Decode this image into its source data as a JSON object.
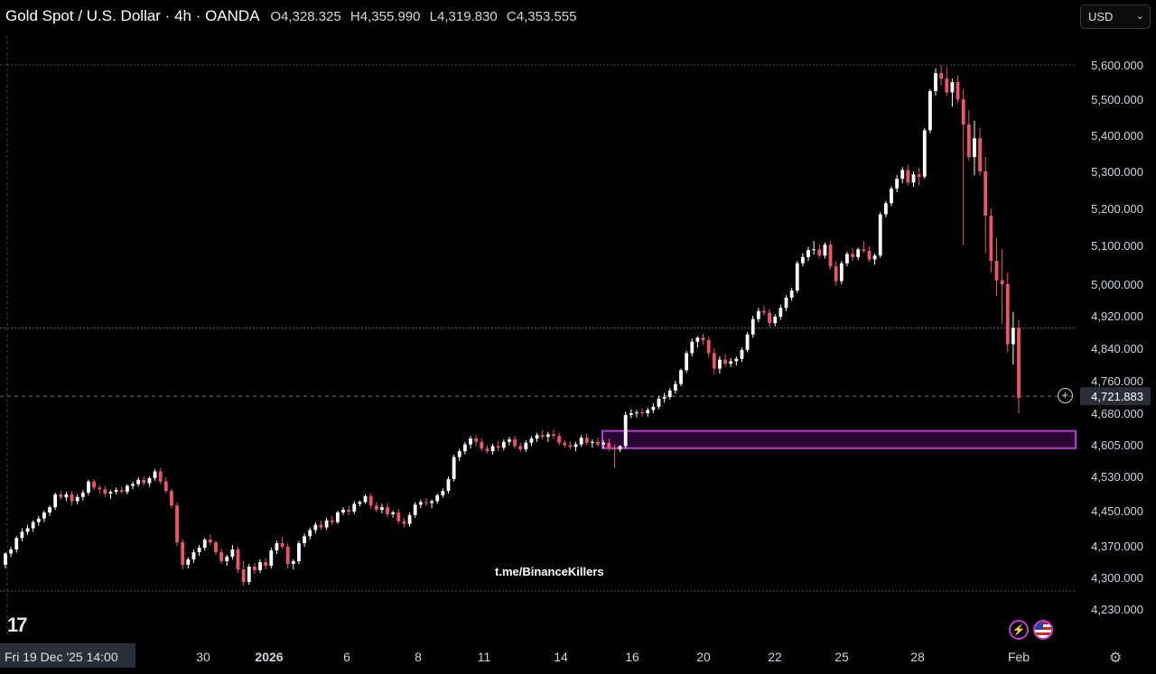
{
  "header": {
    "symbol": "Gold Spot / U.S. Dollar · 4h · OANDA",
    "open": "O4,328.325",
    "high": "H4,355.990",
    "low": "L4,319.830",
    "close": "C4,353.555"
  },
  "currency_selector": {
    "value": "USD"
  },
  "watermark": "t.me/BinanceKillers",
  "crosshair_date_label": "Fri 19 Dec '25   14:00",
  "price_label": "4,721.883",
  "icons": {
    "logo": "tradingview-logo-icon",
    "alerts": "lightning-icon",
    "flag": "us-flag-icon",
    "settings": "gear-icon",
    "add": "plus-circle-icon"
  },
  "colors": {
    "up": "#ffffff",
    "down": "#f05468",
    "zone": "#b13fd1",
    "zone_fill": "#2a0634",
    "price_tag": "#2a2e39",
    "date_tag": "#2a2e39"
  },
  "chart_data": {
    "type": "candlestick",
    "title": "Gold Spot / U.S. Dollar · 4h · OANDA",
    "ylim": [
      4190,
      5660
    ],
    "y_ticks": [
      "5,600.000",
      "5,500.000",
      "5,400.000",
      "5,300.000",
      "5,200.000",
      "5,100.000",
      "5,000.000",
      "4,920.000",
      "4,840.000",
      "4,760.000",
      "4,680.000",
      "4,605.000",
      "4,530.000",
      "4,450.000",
      "4,370.000",
      "4,300.000",
      "4,230.000"
    ],
    "y_tick_values": [
      5600,
      5500,
      5400,
      5300,
      5200,
      5100,
      5000,
      4920,
      4840,
      4760,
      4680,
      4605,
      4530,
      4450,
      4370,
      4300,
      4230
    ],
    "x_ticks": [
      "30",
      "2026",
      "6",
      "8",
      "11",
      "14",
      "16",
      "20",
      "22",
      "25",
      "28",
      "Feb"
    ],
    "last_price": 4721.883,
    "horizontal_lines": [
      5600,
      4890,
      4270
    ],
    "demand_zone": {
      "low": 4597,
      "high": 4638
    },
    "candles_ohlc": [
      [
        4328,
        4356,
        4320,
        4353
      ],
      [
        4353,
        4368,
        4345,
        4362
      ],
      [
        4362,
        4392,
        4355,
        4388
      ],
      [
        4388,
        4410,
        4380,
        4402
      ],
      [
        4402,
        4418,
        4395,
        4410
      ],
      [
        4410,
        4428,
        4402,
        4424
      ],
      [
        4424,
        4438,
        4416,
        4432
      ],
      [
        4432,
        4450,
        4424,
        4446
      ],
      [
        4446,
        4462,
        4438,
        4458
      ],
      [
        4458,
        4492,
        4452,
        4488
      ],
      [
        4488,
        4496,
        4476,
        4481
      ],
      [
        4481,
        4494,
        4472,
        4488
      ],
      [
        4488,
        4496,
        4462,
        4472
      ],
      [
        4472,
        4488,
        4465,
        4482
      ],
      [
        4482,
        4498,
        4474,
        4492
      ],
      [
        4492,
        4522,
        4486,
        4518
      ],
      [
        4518,
        4524,
        4498,
        4504
      ],
      [
        4504,
        4510,
        4490,
        4500
      ],
      [
        4500,
        4508,
        4482,
        4490
      ],
      [
        4490,
        4498,
        4478,
        4494
      ],
      [
        4494,
        4504,
        4488,
        4498
      ],
      [
        4498,
        4506,
        4490,
        4494
      ],
      [
        4494,
        4512,
        4488,
        4508
      ],
      [
        4508,
        4518,
        4500,
        4512
      ],
      [
        4512,
        4528,
        4506,
        4522
      ],
      [
        4522,
        4530,
        4508,
        4514
      ],
      [
        4514,
        4530,
        4506,
        4526
      ],
      [
        4526,
        4548,
        4520,
        4542
      ],
      [
        4542,
        4550,
        4512,
        4518
      ],
      [
        4518,
        4528,
        4490,
        4496
      ],
      [
        4496,
        4502,
        4455,
        4462
      ],
      [
        4462,
        4470,
        4370,
        4378
      ],
      [
        4378,
        4385,
        4318,
        4328
      ],
      [
        4328,
        4345,
        4320,
        4340
      ],
      [
        4340,
        4362,
        4332,
        4356
      ],
      [
        4356,
        4372,
        4348,
        4366
      ],
      [
        4366,
        4388,
        4360,
        4384
      ],
      [
        4384,
        4396,
        4372,
        4378
      ],
      [
        4378,
        4382,
        4350,
        4356
      ],
      [
        4356,
        4364,
        4330,
        4336
      ],
      [
        4336,
        4350,
        4326,
        4346
      ],
      [
        4346,
        4372,
        4340,
        4362
      ],
      [
        4362,
        4368,
        4310,
        4318
      ],
      [
        4318,
        4336,
        4282,
        4290
      ],
      [
        4290,
        4330,
        4284,
        4324
      ],
      [
        4324,
        4332,
        4308,
        4316
      ],
      [
        4316,
        4340,
        4310,
        4334
      ],
      [
        4334,
        4342,
        4318,
        4326
      ],
      [
        4326,
        4366,
        4320,
        4360
      ],
      [
        4360,
        4382,
        4352,
        4376
      ],
      [
        4376,
        4390,
        4364,
        4368
      ],
      [
        4368,
        4376,
        4320,
        4330
      ],
      [
        4330,
        4340,
        4318,
        4336
      ],
      [
        4336,
        4382,
        4330,
        4376
      ],
      [
        4376,
        4398,
        4368,
        4392
      ],
      [
        4392,
        4412,
        4384,
        4406
      ],
      [
        4406,
        4424,
        4398,
        4418
      ],
      [
        4418,
        4428,
        4406,
        4412
      ],
      [
        4412,
        4434,
        4406,
        4428
      ],
      [
        4428,
        4438,
        4418,
        4424
      ],
      [
        4424,
        4450,
        4420,
        4446
      ],
      [
        4446,
        4458,
        4440,
        4452
      ],
      [
        4452,
        4462,
        4440,
        4448
      ],
      [
        4448,
        4472,
        4442,
        4466
      ],
      [
        4466,
        4474,
        4460,
        4470
      ],
      [
        4470,
        4488,
        4466,
        4484
      ],
      [
        4484,
        4490,
        4454,
        4462
      ],
      [
        4462,
        4470,
        4446,
        4452
      ],
      [
        4452,
        4466,
        4444,
        4458
      ],
      [
        4458,
        4468,
        4436,
        4442
      ],
      [
        4442,
        4450,
        4434,
        4446
      ],
      [
        4446,
        4454,
        4420,
        4426
      ],
      [
        4426,
        4434,
        4412,
        4420
      ],
      [
        4420,
        4446,
        4414,
        4440
      ],
      [
        4440,
        4470,
        4434,
        4464
      ],
      [
        4464,
        4476,
        4456,
        4470
      ],
      [
        4470,
        4480,
        4460,
        4468
      ],
      [
        4468,
        4476,
        4456,
        4472
      ],
      [
        4472,
        4490,
        4466,
        4486
      ],
      [
        4486,
        4502,
        4480,
        4496
      ],
      [
        4496,
        4530,
        4490,
        4524
      ],
      [
        4524,
        4582,
        4518,
        4576
      ],
      [
        4576,
        4596,
        4566,
        4590
      ],
      [
        4590,
        4612,
        4582,
        4606
      ],
      [
        4606,
        4626,
        4596,
        4620
      ],
      [
        4620,
        4628,
        4602,
        4612
      ],
      [
        4612,
        4620,
        4590,
        4596
      ],
      [
        4596,
        4604,
        4584,
        4590
      ],
      [
        4590,
        4608,
        4582,
        4602
      ],
      [
        4602,
        4614,
        4590,
        4598
      ],
      [
        4598,
        4618,
        4592,
        4612
      ],
      [
        4612,
        4624,
        4604,
        4618
      ],
      [
        4618,
        4626,
        4596,
        4602
      ],
      [
        4602,
        4610,
        4588,
        4594
      ],
      [
        4594,
        4616,
        4588,
        4610
      ],
      [
        4610,
        4626,
        4602,
        4620
      ],
      [
        4620,
        4634,
        4612,
        4628
      ],
      [
        4628,
        4640,
        4618,
        4624
      ],
      [
        4624,
        4636,
        4612,
        4630
      ],
      [
        4630,
        4642,
        4620,
        4626
      ],
      [
        4626,
        4634,
        4604,
        4610
      ],
      [
        4610,
        4616,
        4598,
        4604
      ],
      [
        4604,
        4614,
        4594,
        4600
      ],
      [
        4600,
        4612,
        4590,
        4606
      ],
      [
        4606,
        4628,
        4600,
        4622
      ],
      [
        4622,
        4632,
        4604,
        4610
      ],
      [
        4610,
        4618,
        4598,
        4612
      ],
      [
        4612,
        4622,
        4600,
        4606
      ],
      [
        4606,
        4616,
        4596,
        4610
      ],
      [
        4610,
        4620,
        4590,
        4598
      ],
      [
        4598,
        4606,
        4550,
        4594
      ],
      [
        4594,
        4604,
        4588,
        4602
      ],
      [
        4602,
        4684,
        4596,
        4676
      ],
      [
        4676,
        4690,
        4668,
        4680
      ],
      [
        4680,
        4688,
        4670,
        4682
      ],
      [
        4682,
        4692,
        4672,
        4680
      ],
      [
        4680,
        4694,
        4672,
        4688
      ],
      [
        4688,
        4704,
        4680,
        4696
      ],
      [
        4696,
        4722,
        4690,
        4716
      ],
      [
        4716,
        4730,
        4706,
        4720
      ],
      [
        4720,
        4742,
        4714,
        4736
      ],
      [
        4736,
        4760,
        4728,
        4752
      ],
      [
        4752,
        4790,
        4746,
        4786
      ],
      [
        4786,
        4834,
        4780,
        4828
      ],
      [
        4828,
        4864,
        4820,
        4856
      ],
      [
        4856,
        4870,
        4842,
        4866
      ],
      [
        4866,
        4876,
        4848,
        4860
      ],
      [
        4860,
        4868,
        4818,
        4828
      ],
      [
        4828,
        4840,
        4776,
        4790
      ],
      [
        4790,
        4820,
        4778,
        4812
      ],
      [
        4812,
        4826,
        4794,
        4802
      ],
      [
        4802,
        4816,
        4794,
        4808
      ],
      [
        4808,
        4820,
        4798,
        4814
      ],
      [
        4814,
        4842,
        4806,
        4836
      ],
      [
        4836,
        4880,
        4830,
        4874
      ],
      [
        4874,
        4920,
        4866,
        4912
      ],
      [
        4912,
        4940,
        4904,
        4932
      ],
      [
        4932,
        4946,
        4920,
        4928
      ],
      [
        4928,
        4936,
        4892,
        4902
      ],
      [
        4902,
        4924,
        4894,
        4918
      ],
      [
        4918,
        4948,
        4910,
        4940
      ],
      [
        4940,
        4972,
        4932,
        4966
      ],
      [
        4966,
        4990,
        4958,
        4984
      ],
      [
        4984,
        5060,
        4978,
        5054
      ],
      [
        5054,
        5080,
        5046,
        5070
      ],
      [
        5070,
        5096,
        5060,
        5088
      ],
      [
        5088,
        5112,
        5076,
        5090
      ],
      [
        5090,
        5104,
        5068,
        5074
      ],
      [
        5074,
        5108,
        5066,
        5102
      ],
      [
        5102,
        5112,
        5038,
        5046
      ],
      [
        5046,
        5060,
        4996,
        5008
      ],
      [
        5008,
        5060,
        5000,
        5054
      ],
      [
        5054,
        5084,
        5046,
        5078
      ],
      [
        5078,
        5094,
        5060,
        5070
      ],
      [
        5070,
        5094,
        5062,
        5090
      ],
      [
        5090,
        5112,
        5080,
        5086
      ],
      [
        5086,
        5098,
        5058,
        5064
      ],
      [
        5064,
        5080,
        5050,
        5074
      ],
      [
        5074,
        5190,
        5068,
        5184
      ],
      [
        5184,
        5220,
        5176,
        5214
      ],
      [
        5214,
        5260,
        5206,
        5254
      ],
      [
        5254,
        5290,
        5244,
        5280
      ],
      [
        5280,
        5312,
        5268,
        5304
      ],
      [
        5304,
        5318,
        5262,
        5270
      ],
      [
        5270,
        5300,
        5258,
        5292
      ],
      [
        5292,
        5310,
        5262,
        5286
      ],
      [
        5286,
        5420,
        5280,
        5414
      ],
      [
        5414,
        5530,
        5406,
        5524
      ],
      [
        5524,
        5590,
        5510,
        5576
      ],
      [
        5576,
        5600,
        5540,
        5560
      ],
      [
        5560,
        5594,
        5510,
        5520
      ],
      [
        5520,
        5560,
        5480,
        5550
      ],
      [
        5550,
        5570,
        5490,
        5500
      ],
      [
        5500,
        5530,
        5100,
        5430
      ],
      [
        5430,
        5470,
        5330,
        5340
      ],
      [
        5340,
        5440,
        5290,
        5392
      ],
      [
        5392,
        5420,
        5290,
        5300
      ],
      [
        5300,
        5340,
        5080,
        5180
      ],
      [
        5180,
        5200,
        5030,
        5060
      ],
      [
        5060,
        5120,
        4970,
        5010
      ],
      [
        5010,
        5090,
        4900,
        5000
      ],
      [
        5000,
        5030,
        4830,
        4850
      ],
      [
        4850,
        4930,
        4800,
        4890
      ],
      [
        4890,
        4910,
        4680,
        4718
      ]
    ]
  }
}
